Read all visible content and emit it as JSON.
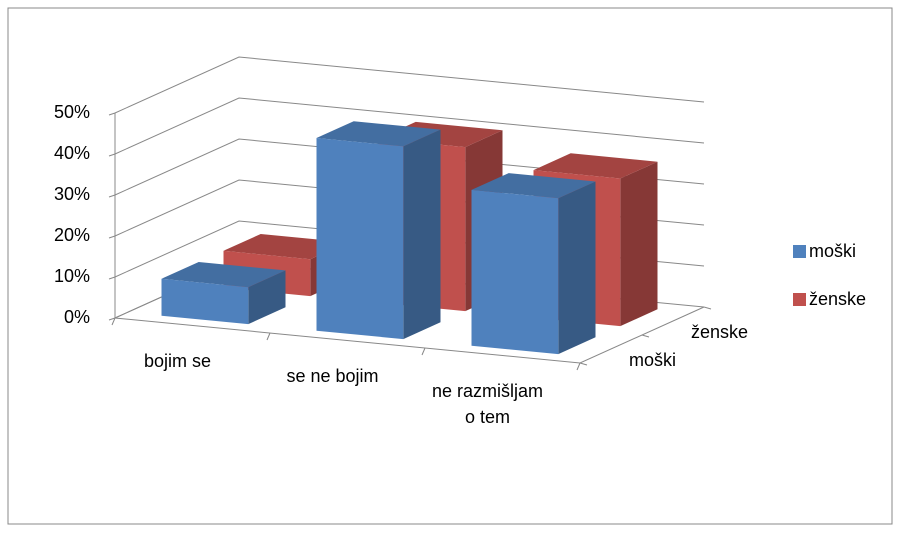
{
  "chart_data": {
    "type": "bar3d",
    "categories": [
      "bojim se",
      "se ne bojim",
      "ne razmišljam o tem"
    ],
    "series": [
      {
        "name": "moški",
        "color": "#4f81bd",
        "values": [
          9,
          47,
          38
        ]
      },
      {
        "name": "ženske",
        "color": "#c0504d",
        "values": [
          9,
          40,
          36
        ]
      }
    ],
    "ylim": [
      0,
      50
    ],
    "yticks": [
      {
        "value": 0,
        "label": "0%"
      },
      {
        "value": 10,
        "label": "10%"
      },
      {
        "value": 20,
        "label": "20%"
      },
      {
        "value": 30,
        "label": "30%"
      },
      {
        "value": 40,
        "label": "40%"
      },
      {
        "value": 50,
        "label": "50%"
      }
    ],
    "grid": true,
    "legend": "right"
  }
}
